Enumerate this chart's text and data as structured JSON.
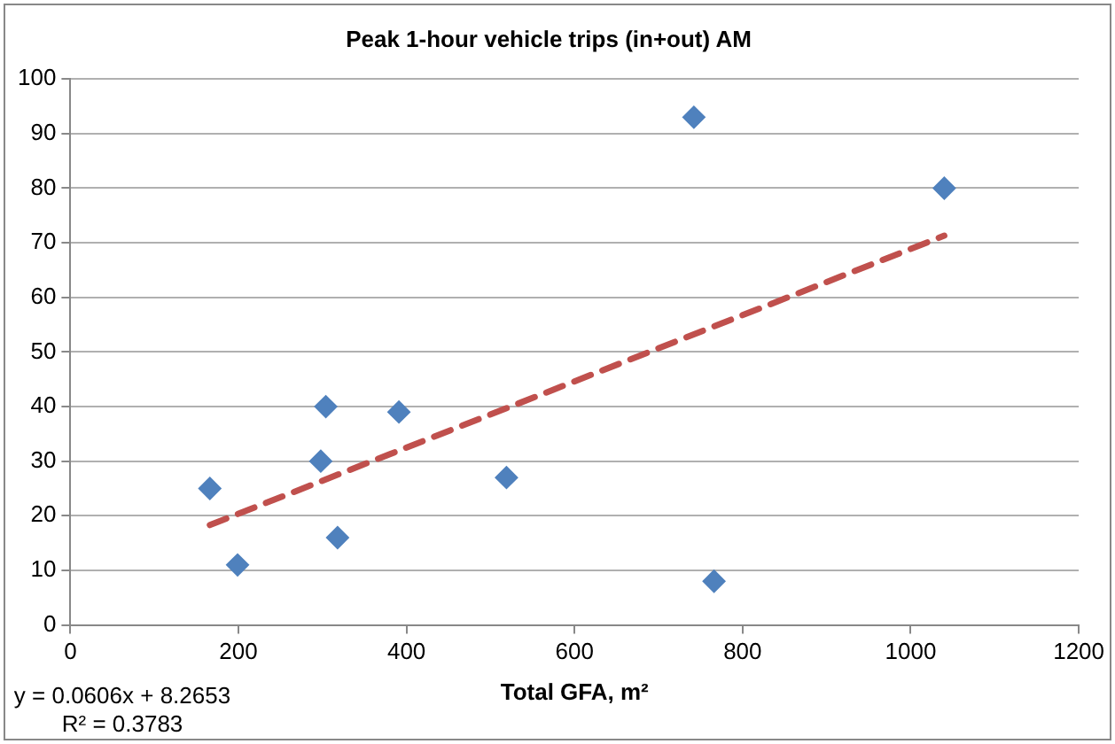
{
  "chart_data": {
    "type": "scatter",
    "title": "Peak 1-hour vehicle trips (in+out) AM",
    "xlabel": "Total GFA, m²",
    "series": [
      {
        "color": "#4f81bd",
        "marker": "diamond",
        "x": [
          166,
          199,
          298,
          304,
          318,
          391,
          519,
          742,
          766,
          1040
        ],
        "values": [
          25,
          11,
          30,
          40,
          16,
          39,
          27,
          93,
          8,
          80
        ]
      },
      {
        "type": "line",
        "color": "#c0504d",
        "line_style": "dashed",
        "marker": "none",
        "x": [
          166,
          1040
        ],
        "values": [
          18.3,
          71.3
        ]
      }
    ],
    "xlim": [
      0,
      1200
    ],
    "xticks": [
      0,
      200,
      400,
      600,
      800,
      1000,
      1200
    ],
    "ylim": [
      0,
      100
    ],
    "yticks": [
      0,
      10,
      20,
      30,
      40,
      50,
      60,
      70,
      80,
      90,
      100
    ],
    "grid": "y",
    "legend": false,
    "annotations": [
      "y = 0.0606x + 8.2653",
      "R² = 0.3783"
    ]
  }
}
